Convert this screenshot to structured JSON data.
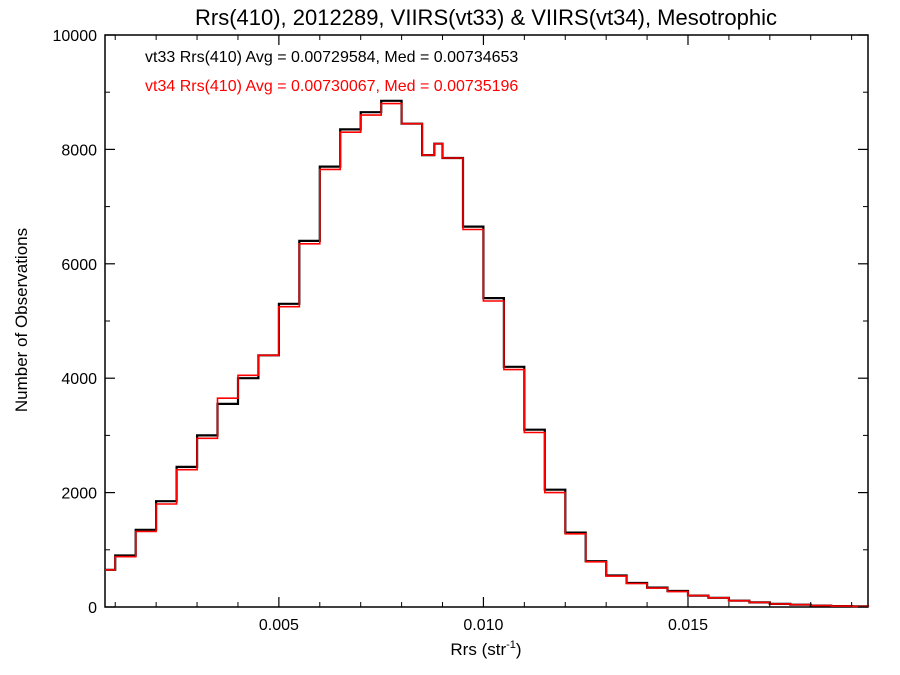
{
  "chart_data": {
    "type": "histogram-step",
    "title": "Rrs(410), 2012289, VIIRS(vt33) & VIIRS(vt34), Mesotrophic",
    "xlabel": "Rrs (str",
    "xlabel_sup": "-1",
    "xlabel_suffix": ")",
    "ylabel": "Number of Observations",
    "xlim": [
      0.00075,
      0.0194
    ],
    "ylim": [
      0,
      10000
    ],
    "x_ticks": [
      0.005,
      0.01,
      0.015
    ],
    "x_tick_labels": [
      "0.005",
      "0.010",
      "0.015"
    ],
    "y_ticks": [
      0,
      2000,
      4000,
      6000,
      8000,
      10000
    ],
    "y_tick_labels": [
      "0",
      "2000",
      "4000",
      "6000",
      "8000",
      "10000"
    ],
    "grid": false,
    "annotations": [
      {
        "text": "vt33 Rrs(410) Avg = 0.00729584, Med = 0.00734653",
        "color": "#000000"
      },
      {
        "text": "vt34 Rrs(410) Avg = 0.00730067, Med = 0.00735196",
        "color": "#ff0000"
      }
    ],
    "series": [
      {
        "name": "vt33",
        "color": "#000000",
        "x": [
          0.00075,
          0.001,
          0.0015,
          0.002,
          0.0025,
          0.003,
          0.0035,
          0.004,
          0.0045,
          0.005,
          0.0055,
          0.006,
          0.0065,
          0.007,
          0.0075,
          0.008,
          0.0085,
          0.0088,
          0.009,
          0.0095,
          0.01,
          0.0105,
          0.011,
          0.0115,
          0.012,
          0.0125,
          0.013,
          0.0135,
          0.014,
          0.0145,
          0.015,
          0.0155,
          0.016,
          0.0165,
          0.017,
          0.0175,
          0.018,
          0.0185,
          0.019,
          0.0194
        ],
        "y": [
          650,
          900,
          1350,
          1850,
          2450,
          3000,
          3550,
          4000,
          4400,
          5300,
          6400,
          7700,
          8350,
          8650,
          8850,
          8450,
          7900,
          8100,
          7850,
          6650,
          5400,
          4200,
          3100,
          2050,
          1300,
          800,
          550,
          420,
          340,
          280,
          200,
          160,
          110,
          80,
          55,
          40,
          25,
          15,
          10,
          5
        ]
      },
      {
        "name": "vt34",
        "color": "#ff0000",
        "x": [
          0.00075,
          0.001,
          0.0015,
          0.002,
          0.0025,
          0.003,
          0.0035,
          0.004,
          0.0045,
          0.005,
          0.0055,
          0.006,
          0.0065,
          0.007,
          0.0075,
          0.008,
          0.0085,
          0.0088,
          0.009,
          0.0095,
          0.01,
          0.0105,
          0.011,
          0.0115,
          0.012,
          0.0125,
          0.013,
          0.0135,
          0.014,
          0.0145,
          0.015,
          0.0155,
          0.016,
          0.0165,
          0.017,
          0.0175,
          0.018,
          0.0185,
          0.019,
          0.0194
        ],
        "y": [
          650,
          880,
          1320,
          1800,
          2400,
          2950,
          3650,
          4050,
          4400,
          5250,
          6350,
          7650,
          8300,
          8600,
          8800,
          8450,
          7900,
          8100,
          7850,
          6600,
          5350,
          4150,
          3050,
          2000,
          1280,
          790,
          540,
          410,
          330,
          270,
          200,
          160,
          110,
          80,
          55,
          40,
          25,
          15,
          10,
          5
        ]
      }
    ]
  }
}
